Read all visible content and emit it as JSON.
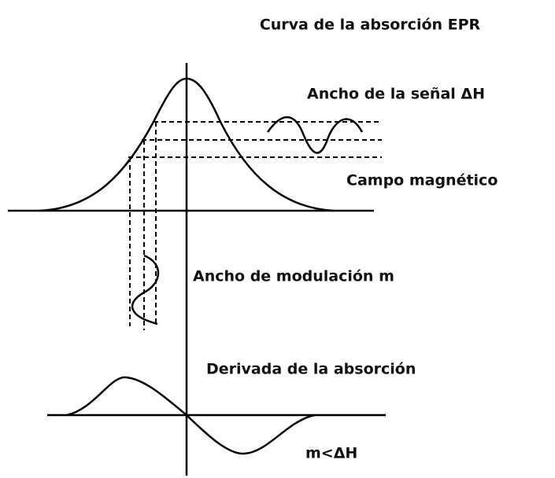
{
  "title": "Curva de la absorción EPR",
  "labels": {
    "signal_width": "Ancho de la señal ΔH",
    "field": "Campo magnético",
    "modulation": "Ancho de modulación m",
    "derivative": "Derivada de la absorción",
    "condition": "m<ΔH"
  }
}
